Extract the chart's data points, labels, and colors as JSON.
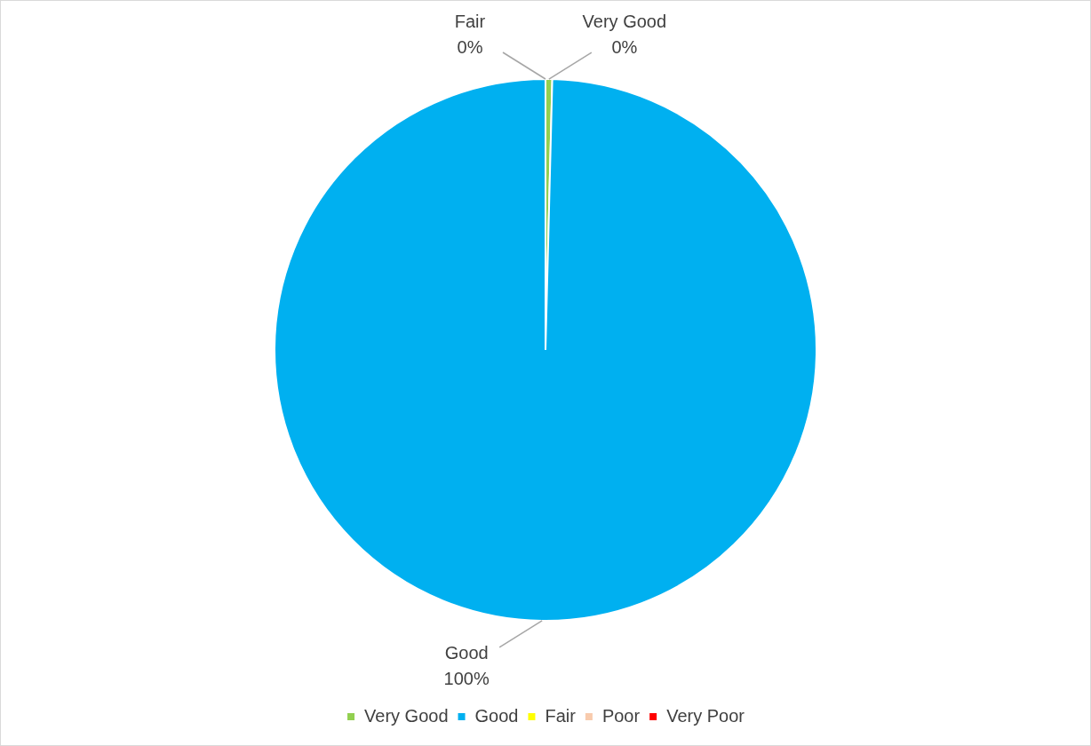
{
  "chart_data": {
    "type": "pie",
    "categories": [
      "Very Good",
      "Good",
      "Fair",
      "Poor",
      "Very Poor"
    ],
    "values": [
      0.4,
      99.6,
      0,
      0,
      0
    ],
    "colors": [
      "#92d050",
      "#00b0f0",
      "#ffff00",
      "#f8cbad",
      "#ff0000"
    ],
    "value_labels": [
      "0%",
      "100%",
      "0%",
      null,
      null
    ],
    "legend": "bottom"
  }
}
